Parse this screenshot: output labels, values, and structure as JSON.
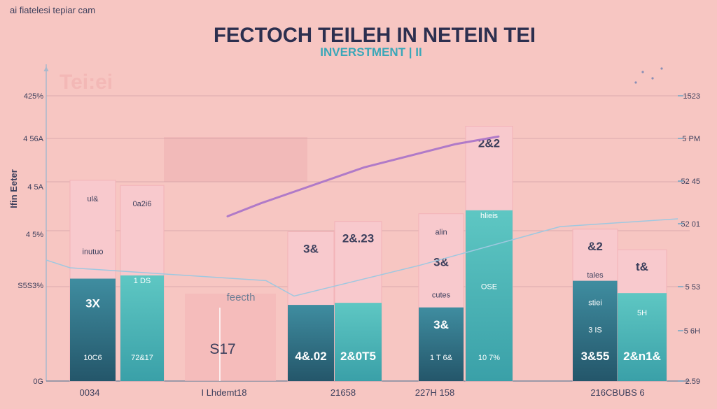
{
  "header": {
    "watermark": "ai fiatelesi tepiar cam",
    "title": "FECTOCH TEILEH IN NETEIN TEI",
    "subtitle": "INVERSTMENT | II"
  },
  "side_label": "Ifin Eeter",
  "faded_label": "Tei:ei",
  "chart_data": {
    "type": "bar",
    "title": "FECTOCH TEILEH IN NETEIN TEI",
    "subtitle": "INVERSTMENT | II",
    "ylabel": "Ifin Eeter",
    "y_ticks_left": [
      "425%",
      "4 56A",
      "4 5A",
      "4 5%",
      "S5S3%",
      "0G"
    ],
    "y_ticks_right": [
      "1523",
      "5 PM",
      "52 45",
      "52 01",
      "5 53",
      "5 6H",
      "2.59"
    ],
    "x_labels": [
      "0034",
      "I Lhdemt18",
      "21658",
      "227H 158",
      "216CBUBS 6"
    ],
    "groups": [
      {
        "label": "0034",
        "bars": [
          {
            "value": 78,
            "teal": 0.51,
            "labels": [
              "ul&",
              "inutuo",
              "3X",
              "10C6"
            ]
          },
          {
            "value": 76,
            "teal": 0.54,
            "labels": [
              "0a2i6",
              "1 DS",
              "72&17"
            ]
          }
        ]
      },
      {
        "label": "21658",
        "bars": [
          {
            "value": 58,
            "teal": 0.51,
            "labels": [
              "3&",
              "4&.02"
            ]
          },
          {
            "value": 62,
            "teal": 0.49,
            "labels": [
              "2&.23",
              "2&0T5"
            ]
          }
        ]
      },
      {
        "label": "227H 158",
        "bars": [
          {
            "value": 65,
            "teal": 0.44,
            "labels": [
              "alin",
              "3&",
              "cutes",
              "3&",
              "1 T 6&"
            ]
          },
          {
            "value": 99,
            "teal": 0.67,
            "labels": [
              "2&2",
              "hlieis",
              "OSE",
              "10 7%"
            ]
          }
        ]
      },
      {
        "label": "216CBUBS 6",
        "bars": [
          {
            "value": 59,
            "teal": 0.66,
            "labels": [
              "&2",
              "tales",
              "stiei",
              "3 IS",
              "3&55"
            ]
          },
          {
            "value": 51,
            "teal": 0.67,
            "labels": [
              "t&",
              "5H",
              "2&n1&"
            ]
          }
        ]
      }
    ],
    "trend_line": {
      "series": "growth",
      "color": "#b07ac8",
      "values": [
        64,
        69,
        83,
        92,
        95
      ]
    },
    "secondary_line": {
      "color": "#9fc8e0",
      "values": [
        47,
        44,
        39,
        33,
        45,
        60,
        63
      ]
    },
    "annotation_box": {
      "label": "feecth",
      "value": "S17"
    },
    "ylim": [
      0,
      110
    ],
    "grid": true,
    "colors": {
      "background": "#f7c6c2",
      "pink_bar": "#f8c9cd",
      "teal": "#4cb8b8",
      "dark_teal": "#2a6b7c",
      "title": "#2c2f4f",
      "subtitle": "#3aa7b8"
    }
  }
}
